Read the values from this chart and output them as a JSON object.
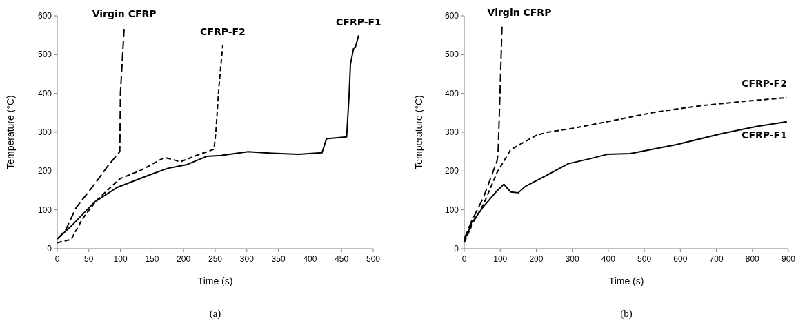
{
  "chart_data": [
    {
      "type": "line",
      "xlabel": "Time (s)",
      "ylabel": "Temperature (°C)",
      "annotations": [
        "(a)"
      ],
      "xlim": [
        0,
        500
      ],
      "ylim": [
        0,
        600
      ],
      "xticks": [
        0,
        50,
        100,
        150,
        200,
        250,
        300,
        350,
        400,
        450,
        500
      ],
      "yticks": [
        0,
        100,
        200,
        300,
        400,
        500,
        600
      ],
      "grid": false,
      "series": [
        {
          "name": "Virgin CFRP",
          "color": "#000000",
          "line_style": "dashed",
          "x": [
            0,
            13,
            30,
            59,
            80,
            99,
            100,
            106
          ],
          "values": [
            25,
            47,
            106,
            166,
            213,
            250,
            402,
            571
          ]
        },
        {
          "name": "CFRP-F2",
          "color": "#000000",
          "line_style": "dashed",
          "x": [
            0,
            22,
            40,
            62,
            99,
            131,
            170,
            195,
            220,
            248,
            251,
            256,
            262
          ],
          "values": [
            15,
            24,
            77,
            124,
            180,
            201,
            235,
            224,
            240,
            256,
            300,
            420,
            525
          ]
        },
        {
          "name": "CFRP-F1",
          "color": "#000000",
          "line_style": "solid",
          "x": [
            0,
            22,
            59,
            95,
            146,
            175,
            204,
            237,
            259,
            302,
            340,
            382,
            419,
            426,
            458,
            462,
            464,
            469,
            472,
            477
          ],
          "values": [
            25,
            58,
            120,
            158,
            190,
            207,
            216,
            238,
            240,
            250,
            246,
            243,
            247,
            283,
            288,
            400,
            475,
            516,
            520,
            550
          ]
        }
      ]
    },
    {
      "type": "line",
      "xlabel": "Time (s)",
      "ylabel": "Temperature (°C)",
      "annotations": [
        "(b)"
      ],
      "xlim": [
        0,
        900
      ],
      "ylim": [
        0,
        600
      ],
      "xticks": [
        0,
        100,
        200,
        300,
        400,
        500,
        600,
        700,
        800,
        900
      ],
      "yticks": [
        0,
        100,
        200,
        300,
        400,
        500,
        600
      ],
      "grid": false,
      "series": [
        {
          "name": "Virgin CFRP",
          "color": "#000000",
          "line_style": "dashed",
          "x": [
            0,
            21,
            53,
            91,
            94,
            100,
            105
          ],
          "values": [
            25,
            72,
            131,
            226,
            245,
            420,
            576
          ]
        },
        {
          "name": "CFRP-F2",
          "color": "#000000",
          "line_style": "dashed",
          "x": [
            0,
            27,
            53,
            91,
            129,
            200,
            231,
            295,
            397,
            525,
            653,
            781,
            896
          ],
          "values": [
            16,
            72,
            113,
            196,
            255,
            292,
            300,
            309,
            327,
            351,
            368,
            380,
            389
          ]
        },
        {
          "name": "CFRP-F1",
          "color": "#000000",
          "line_style": "solid",
          "x": [
            0,
            21,
            53,
            91,
            110,
            129,
            150,
            169,
            225,
            289,
            346,
            397,
            461,
            589,
            717,
            813,
            896
          ],
          "values": [
            20,
            66,
            108,
            149,
            166,
            146,
            144,
            160,
            187,
            219,
            231,
            243,
            245,
            268,
            297,
            315,
            327
          ]
        }
      ]
    }
  ]
}
